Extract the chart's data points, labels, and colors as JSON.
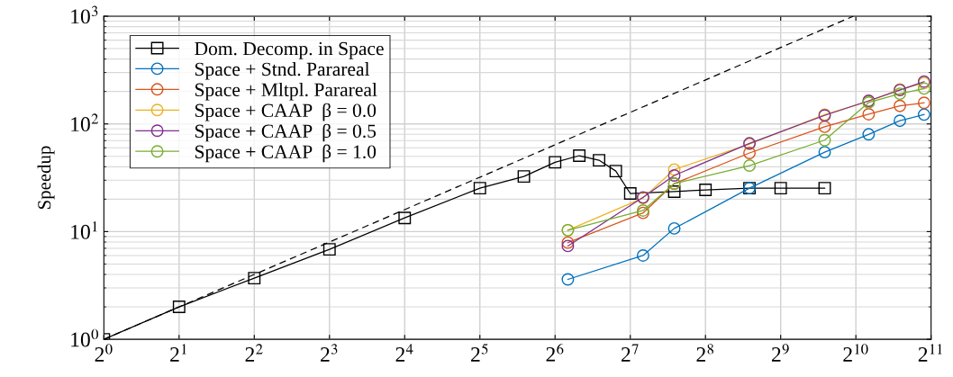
{
  "chart_data": {
    "type": "line",
    "ylabel": "Speedup",
    "log": "xy",
    "grid": true,
    "legend": "top left",
    "xlim": [
      1,
      2048
    ],
    "ylim": [
      1,
      1000
    ],
    "xticks": [
      {
        "value": 1,
        "label": "2$^{0}$"
      },
      {
        "value": 2,
        "label": "2$^{1}$"
      },
      {
        "value": 4,
        "label": "2$^{2}$"
      },
      {
        "value": 8,
        "label": "2$^{3}$"
      },
      {
        "value": 16,
        "label": "2$^{4}$"
      },
      {
        "value": 32,
        "label": "2$^{5}$"
      },
      {
        "value": 64,
        "label": "2$^{6}$"
      },
      {
        "value": 128,
        "label": "2$^{7}$"
      },
      {
        "value": 256,
        "label": "2$^{8}$"
      },
      {
        "value": 512,
        "label": "2$^{9}$"
      },
      {
        "value": 1024,
        "label": "2$^{10}$"
      },
      {
        "value": 2048,
        "label": "2$^{11}$"
      }
    ],
    "yticks": [
      {
        "value": 1,
        "label": "10$^{0}$"
      },
      {
        "value": 10,
        "label": "10$^{1}$"
      },
      {
        "value": 100,
        "label": "10$^{2}$"
      },
      {
        "value": 1000,
        "label": "10$^{3}$"
      }
    ],
    "series": [
      {
        "color": "#000000",
        "line_style": "dashed",
        "x": [
          1,
          1000
        ],
        "values": [
          1,
          1000
        ]
      },
      {
        "name": "Dom. Decomp. in Space",
        "color": "#000000",
        "line_style": "solid",
        "marker": "square",
        "x": [
          1,
          2,
          4,
          8,
          16,
          32,
          48,
          64,
          80,
          96,
          112,
          128,
          192,
          256,
          384,
          512,
          768
        ],
        "values": [
          1,
          2,
          3.7,
          6.85,
          13.4,
          25.3,
          32.5,
          44,
          50.7,
          46,
          36.5,
          22.6,
          23.5,
          24.4,
          25.3,
          25.3,
          25.3
        ]
      },
      {
        "name": "Space + Stnd. Parareal",
        "color": "#0072bd",
        "line_style": "solid",
        "marker": "circle",
        "x": [
          72,
          144,
          192,
          384,
          768,
          1152,
          1536,
          1920
        ],
        "values": [
          3.6,
          6,
          10.7,
          25.3,
          54.7,
          80,
          107,
          122
        ]
      },
      {
        "name": "Space + Mltpl. Parareal",
        "color": "#d95319",
        "line_style": "solid",
        "marker": "circle",
        "x": [
          72,
          144,
          192,
          384,
          768,
          1152,
          1536,
          1920
        ],
        "values": [
          7.9,
          14.9,
          27.9,
          53.7,
          94,
          123,
          147,
          157
        ]
      },
      {
        "name": "Space + CAAP  β = 0.0",
        "color": "#edb120",
        "line_style": "solid",
        "marker": "circle",
        "x": [
          72,
          144,
          192,
          384,
          768,
          1152,
          1536,
          1920
        ],
        "values": [
          10.3,
          20.5,
          37.7,
          65,
          122,
          162,
          209,
          239
        ]
      },
      {
        "name": "Space + CAAP  β = 0.5",
        "color": "#7e2f8e",
        "line_style": "solid",
        "marker": "circle",
        "x": [
          72,
          144,
          192,
          384,
          768,
          1152,
          1536,
          1920
        ],
        "values": [
          7.35,
          20.8,
          33.2,
          66,
          120,
          164,
          206,
          247
        ]
      },
      {
        "name": "Space + CAAP  β = 1.0",
        "color": "#77ac30",
        "line_style": "solid",
        "marker": "circle",
        "x": [
          72,
          144,
          192,
          384,
          768,
          1152,
          1536,
          1920
        ],
        "values": [
          10.3,
          15.7,
          27.9,
          41,
          70.7,
          158,
          191,
          213
        ]
      }
    ]
  }
}
